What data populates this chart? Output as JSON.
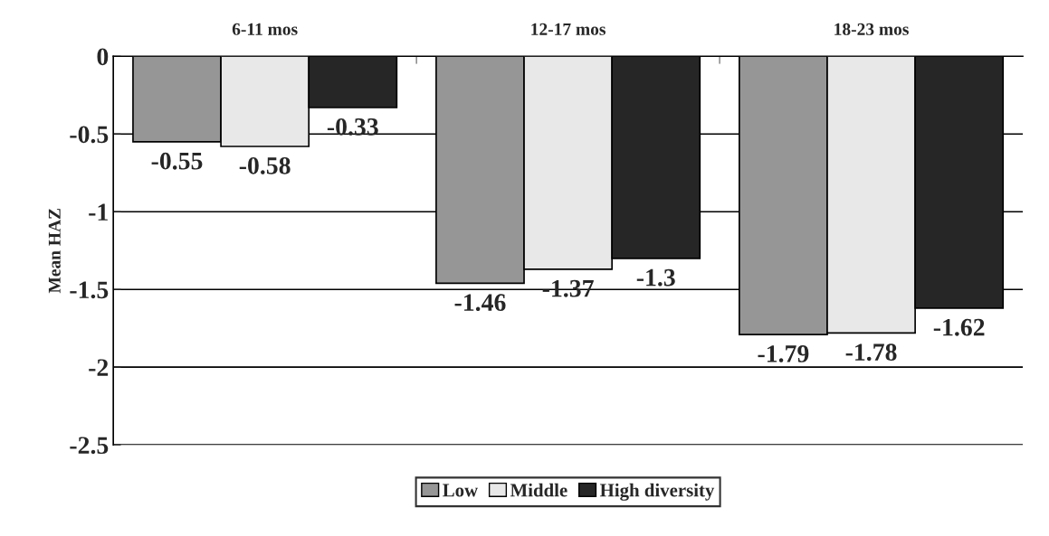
{
  "chart_data": {
    "type": "bar",
    "ylabel": "Mean HAZ",
    "categories": [
      "6-11 mos",
      "12-17 mos",
      "18-23 mos"
    ],
    "series": [
      {
        "name": "Low",
        "color": "#969696",
        "values": [
          -0.55,
          -1.46,
          -1.79
        ]
      },
      {
        "name": "Middle",
        "color": "#e8e8e8",
        "values": [
          -0.58,
          -1.37,
          -1.78
        ]
      },
      {
        "name": "High diversity",
        "color": "#262626",
        "values": [
          -0.33,
          -1.3,
          -1.62
        ]
      }
    ],
    "ylim": [
      -2.5,
      0
    ],
    "yticks": [
      0,
      -0.5,
      -1,
      -1.5,
      -2,
      -2.5
    ],
    "grid": "y",
    "legend": "bottom",
    "data_labels": true
  }
}
